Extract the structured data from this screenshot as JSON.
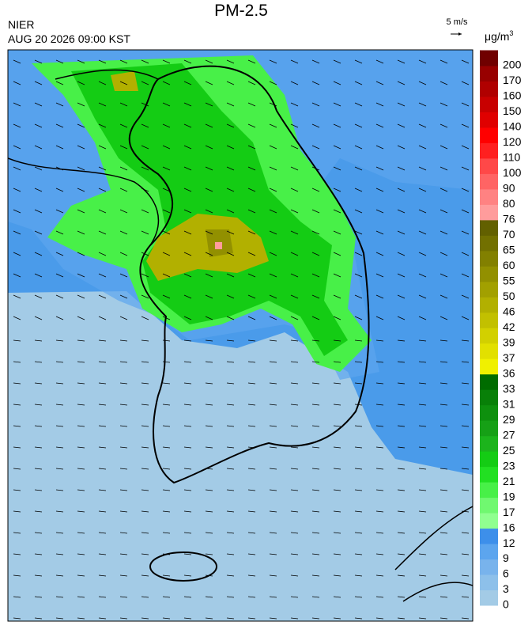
{
  "header": {
    "title": "PM-2.5",
    "agency": "NIER",
    "timestamp": "AUG 20 2026 09:00 KST",
    "wind_scale": "5 m/s",
    "unit": "μg/m",
    "unit_power": "3"
  },
  "colorbar": {
    "levels": [
      0,
      3,
      6,
      9,
      12,
      16,
      17,
      19,
      21,
      23,
      25,
      27,
      29,
      31,
      33,
      36,
      37,
      39,
      42,
      46,
      50,
      55,
      60,
      65,
      70,
      76,
      80,
      90,
      100,
      110,
      120,
      140,
      150,
      160,
      170,
      200
    ],
    "colors": [
      "#a3cbe6",
      "#8dc0ea",
      "#78b3ec",
      "#5ca5ee",
      "#3d8fea",
      "#90ff90",
      "#70f870",
      "#48f048",
      "#22e022",
      "#14cc14",
      "#1cb41c",
      "#16a016",
      "#0e900e",
      "#088008",
      "#006c00",
      "#f0f000",
      "#e2e000",
      "#d2d000",
      "#c2c000",
      "#b2b000",
      "#a2a000",
      "#929000",
      "#828000",
      "#727000",
      "#626000",
      "#ff9c9c",
      "#ff8282",
      "#ff6464",
      "#ff4848",
      "#ff2020",
      "#ff0000",
      "#e00000",
      "#c80000",
      "#b00000",
      "#980000",
      "#700000"
    ]
  }
}
